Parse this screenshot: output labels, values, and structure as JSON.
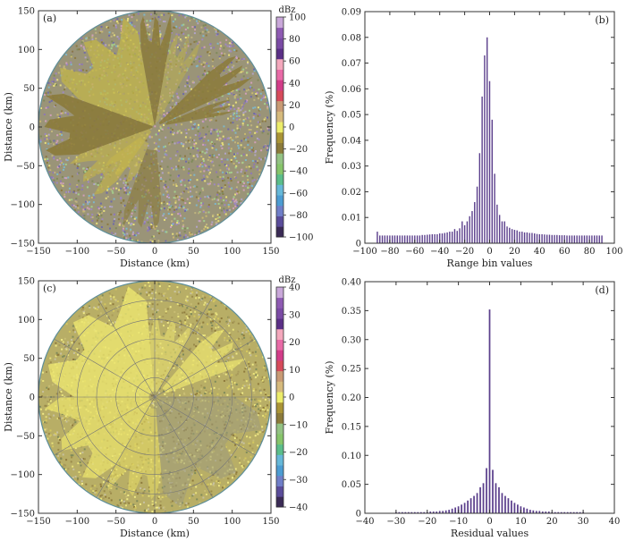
{
  "chart_data": [
    {
      "type": "heatmap",
      "panel": "(a)",
      "plot": "polar radar PPI",
      "xlabel": "Distance (km)",
      "ylabel": "Distance (km)",
      "xlim": [
        -150,
        150
      ],
      "ylim": [
        -150,
        150
      ],
      "xticks": [
        -150,
        -100,
        -50,
        0,
        50,
        100,
        150
      ],
      "yticks": [
        150,
        100,
        50,
        0,
        -50,
        -100,
        -150
      ],
      "colorbar": {
        "unit": "dBz",
        "range": [
          -100,
          100
        ],
        "ticks": [
          100,
          80,
          60,
          40,
          20,
          0,
          -20,
          -40,
          -60,
          -80,
          -100
        ],
        "colors": [
          "#3a2a55",
          "#5a4c9a",
          "#6f7ec8",
          "#4c9cd2",
          "#66b8d8",
          "#5bbd8a",
          "#86c46a",
          "#93c283",
          "#8b7a3a",
          "#aa9436",
          "#ecec6a",
          "#d6ba7c",
          "#c89a74",
          "#d64a5a",
          "#d23c88",
          "#e86aa6",
          "#f4a8bc",
          "#5a2f86",
          "#7a4aa4",
          "#8e5ab2",
          "#c9a8d9"
        ]
      },
      "grid": false
    },
    {
      "type": "bar",
      "panel": "(b)",
      "xlabel": "Range  bin  values",
      "ylabel": "Frequency (%)",
      "xlim": [
        -100,
        100
      ],
      "ylim": [
        0,
        0.09
      ],
      "xticks": [
        -100,
        -80,
        -60,
        -40,
        -20,
        0,
        20,
        40,
        60,
        80,
        100
      ],
      "yticks": [
        0,
        0.01,
        0.02,
        0.03,
        0.04,
        0.05,
        0.06,
        0.07,
        0.08,
        0.09
      ],
      "bar_step": 2,
      "x": [
        -90,
        -88,
        -86,
        -84,
        -82,
        -80,
        -78,
        -76,
        -74,
        -72,
        -70,
        -68,
        -66,
        -64,
        -62,
        -60,
        -58,
        -56,
        -54,
        -52,
        -50,
        -48,
        -46,
        -44,
        -42,
        -40,
        -38,
        -36,
        -34,
        -32,
        -30,
        -28,
        -26,
        -24,
        -22,
        -20,
        -18,
        -16,
        -14,
        -12,
        -10,
        -8,
        -6,
        -4,
        -2,
        0,
        2,
        4,
        6,
        8,
        10,
        12,
        14,
        16,
        18,
        20,
        22,
        24,
        26,
        28,
        30,
        32,
        34,
        36,
        38,
        40,
        42,
        44,
        46,
        48,
        50,
        52,
        54,
        56,
        58,
        60,
        62,
        64,
        66,
        68,
        70,
        72,
        74,
        76,
        78,
        80,
        82,
        84,
        86,
        88,
        90
      ],
      "values": [
        0.0045,
        0.003,
        0.003,
        0.003,
        0.003,
        0.003,
        0.003,
        0.003,
        0.003,
        0.003,
        0.003,
        0.003,
        0.003,
        0.003,
        0.003,
        0.003,
        0.003,
        0.003,
        0.0032,
        0.0032,
        0.0033,
        0.0034,
        0.0035,
        0.0035,
        0.0035,
        0.0038,
        0.0038,
        0.004,
        0.0042,
        0.0045,
        0.0045,
        0.0055,
        0.0048,
        0.0058,
        0.0085,
        0.007,
        0.0085,
        0.0105,
        0.0125,
        0.016,
        0.022,
        0.035,
        0.057,
        0.073,
        0.08,
        0.063,
        0.048,
        0.027,
        0.015,
        0.011,
        0.0085,
        0.0085,
        0.0065,
        0.006,
        0.0055,
        0.0052,
        0.005,
        0.0045,
        0.0045,
        0.0042,
        0.0042,
        0.004,
        0.004,
        0.0038,
        0.0036,
        0.0035,
        0.0035,
        0.0034,
        0.0033,
        0.0033,
        0.0032,
        0.0032,
        0.0032,
        0.0031,
        0.0031,
        0.0031,
        0.003,
        0.003,
        0.003,
        0.003,
        0.003,
        0.003,
        0.003,
        0.003,
        0.003,
        0.003,
        0.003,
        0.003,
        0.003,
        0.003,
        0.003
      ]
    },
    {
      "type": "heatmap",
      "panel": "(c)",
      "plot": "polar radar PPI",
      "xlabel": "Distance (km)",
      "ylabel": "Distance (km)",
      "xlim": [
        -150,
        150
      ],
      "ylim": [
        -150,
        150
      ],
      "xticks": [
        -150,
        -100,
        -50,
        0,
        50,
        100,
        150
      ],
      "yticks": [
        150,
        100,
        50,
        0,
        -50,
        -100,
        -150
      ],
      "colorbar": {
        "unit": "dBz",
        "range": [
          -40,
          40
        ],
        "ticks": [
          40,
          30,
          20,
          10,
          0,
          -10,
          -20,
          -30,
          -40
        ],
        "colors": [
          "#3a2a55",
          "#5a4c9a",
          "#6f7ec8",
          "#4c9cd2",
          "#66b8d8",
          "#5bbd8a",
          "#86c46a",
          "#93c283",
          "#8b7a3a",
          "#aa9436",
          "#ecec6a",
          "#d6ba7c",
          "#c89a74",
          "#d64a5a",
          "#d23c88",
          "#e86aa6",
          "#f4a8bc",
          "#5a2f86",
          "#7a4aa4",
          "#8e5ab2",
          "#c9a8d9"
        ]
      },
      "grid": true
    },
    {
      "type": "bar",
      "panel": "(d)",
      "xlabel": "Residual  values",
      "ylabel": "Frequency (%)",
      "xlim": [
        -40,
        40
      ],
      "ylim": [
        0,
        0.4
      ],
      "xticks": [
        -40,
        -30,
        -20,
        -10,
        0,
        10,
        20,
        30,
        40
      ],
      "yticks": [
        0,
        0.05,
        0.1,
        0.15,
        0.2,
        0.25,
        0.3,
        0.35,
        0.4
      ],
      "bar_step": 1,
      "x": [
        -30,
        -29,
        -28,
        -27,
        -26,
        -25,
        -24,
        -23,
        -22,
        -21,
        -20,
        -19,
        -18,
        -17,
        -16,
        -15,
        -14,
        -13,
        -12,
        -11,
        -10,
        -9,
        -8,
        -7,
        -6,
        -5,
        -4,
        -3,
        -2,
        -1,
        0,
        1,
        2,
        3,
        4,
        5,
        6,
        7,
        8,
        9,
        10,
        11,
        12,
        13,
        14,
        15,
        16,
        17,
        18,
        19,
        20,
        21,
        22,
        23,
        24,
        25,
        26,
        27,
        28,
        29,
        30
      ],
      "values": [
        0.002,
        0.002,
        0.002,
        0.002,
        0.002,
        0.002,
        0.002,
        0.002,
        0.002,
        0.002,
        0.002,
        0.003,
        0.003,
        0.003,
        0.004,
        0.004,
        0.005,
        0.006,
        0.008,
        0.01,
        0.012,
        0.015,
        0.018,
        0.022,
        0.026,
        0.03,
        0.035,
        0.045,
        0.052,
        0.078,
        0.352,
        0.075,
        0.052,
        0.045,
        0.035,
        0.03,
        0.026,
        0.022,
        0.018,
        0.015,
        0.012,
        0.01,
        0.008,
        0.006,
        0.005,
        0.004,
        0.004,
        0.003,
        0.003,
        0.003,
        0.002,
        0.002,
        0.002,
        0.002,
        0.002,
        0.002,
        0.002,
        0.002,
        0.002,
        0.002,
        0.002
      ]
    }
  ]
}
